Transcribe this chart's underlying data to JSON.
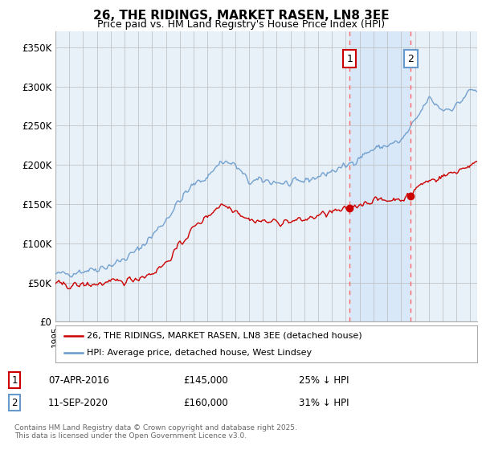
{
  "title": "26, THE RIDINGS, MARKET RASEN, LN8 3EE",
  "subtitle": "Price paid vs. HM Land Registry's House Price Index (HPI)",
  "ylim": [
    0,
    370000
  ],
  "yticks": [
    0,
    50000,
    100000,
    150000,
    200000,
    250000,
    300000,
    350000
  ],
  "ytick_labels": [
    "£0",
    "£50K",
    "£100K",
    "£150K",
    "£200K",
    "£250K",
    "£300K",
    "£350K"
  ],
  "background_color": "#e8f0f8",
  "grid_color": "#bbbbbb",
  "annotation1": {
    "label": "1",
    "date": "07-APR-2016",
    "price": 145000,
    "pct": "25% ↓ HPI",
    "x_year": 2016.27
  },
  "annotation2": {
    "label": "2",
    "date": "11-SEP-2020",
    "price": 160000,
    "pct": "31% ↓ HPI",
    "x_year": 2020.69
  },
  "legend_line1": "26, THE RIDINGS, MARKET RASEN, LN8 3EE (detached house)",
  "legend_line2": "HPI: Average price, detached house, West Lindsey",
  "footnote": "Contains HM Land Registry data © Crown copyright and database right 2025.\nThis data is licensed under the Open Government Licence v3.0.",
  "line_red_color": "#cc0000",
  "line_blue_color": "#6699cc",
  "shade_color": "#d8e8f8",
  "vline_color": "#ff6666",
  "dot_color": "#cc0000",
  "xlim_left": 1995,
  "xlim_right": 2025.5
}
